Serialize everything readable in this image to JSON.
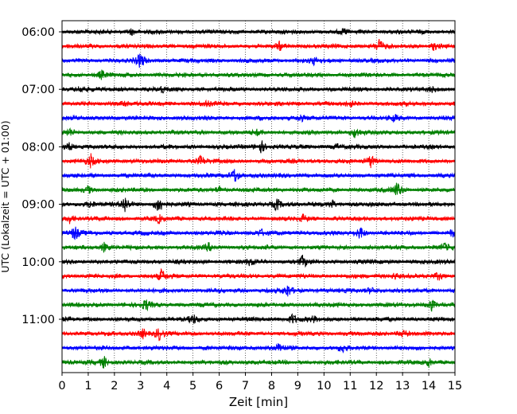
{
  "chart_data": {
    "type": "line",
    "title": "",
    "xlabel": "Zeit  [min]",
    "ylabel": "UTC (Lokalzeit = UTC + 01:00)",
    "xlim": [
      0,
      15
    ],
    "x_ticks": [
      "0",
      "1",
      "2",
      "3",
      "4",
      "5",
      "6",
      "7",
      "8",
      "9",
      "10",
      "11",
      "12",
      "13",
      "14",
      "15"
    ],
    "y_tick_labels": [
      "06:00",
      "07:00",
      "08:00",
      "09:00",
      "10:00",
      "11:00"
    ],
    "grid": "vertical dotted",
    "trace_colors": [
      "#000000",
      "#ff0000",
      "#0000ff",
      "#008000"
    ],
    "rows": [
      {
        "time": "06:00",
        "color": "#000000",
        "events": [
          {
            "x": 2.65,
            "a": 0.4
          },
          {
            "x": 10.8,
            "a": 0.3
          }
        ]
      },
      {
        "time": "06:15",
        "color": "#ff0000",
        "events": [
          {
            "x": 8.3,
            "a": 0.5
          },
          {
            "x": 12.1,
            "a": 1.0
          },
          {
            "x": 14.2,
            "a": 0.5
          }
        ]
      },
      {
        "time": "06:30",
        "color": "#0000ff",
        "events": [
          {
            "x": 3.0,
            "a": 1.1
          },
          {
            "x": 9.6,
            "a": 0.5
          }
        ]
      },
      {
        "time": "06:45",
        "color": "#008000",
        "events": [
          {
            "x": 1.5,
            "a": 0.5
          }
        ]
      },
      {
        "time": "07:00",
        "color": "#000000",
        "events": [
          {
            "x": 0.7,
            "a": 0.5
          },
          {
            "x": 3.8,
            "a": 0.4
          },
          {
            "x": 14.1,
            "a": 0.4
          }
        ]
      },
      {
        "time": "07:15",
        "color": "#ff0000",
        "events": [
          {
            "x": 2.4,
            "a": 0.5
          },
          {
            "x": 5.5,
            "a": 0.4
          },
          {
            "x": 11.0,
            "a": 0.4
          }
        ]
      },
      {
        "time": "07:30",
        "color": "#0000ff",
        "events": [
          {
            "x": 9.1,
            "a": 0.6
          },
          {
            "x": 12.7,
            "a": 0.4
          }
        ]
      },
      {
        "time": "07:45",
        "color": "#008000",
        "events": [
          {
            "x": 0.3,
            "a": 0.5
          },
          {
            "x": 11.2,
            "a": 0.8
          },
          {
            "x": 7.5,
            "a": 0.4
          }
        ]
      },
      {
        "time": "08:00",
        "color": "#000000",
        "events": [
          {
            "x": 0.3,
            "a": 0.6
          },
          {
            "x": 7.6,
            "a": 1.0
          },
          {
            "x": 10.5,
            "a": 0.4
          }
        ]
      },
      {
        "time": "08:15",
        "color": "#ff0000",
        "events": [
          {
            "x": 1.1,
            "a": 0.9
          },
          {
            "x": 5.3,
            "a": 0.8
          },
          {
            "x": 11.8,
            "a": 0.9
          }
        ]
      },
      {
        "time": "08:30",
        "color": "#0000ff",
        "events": [
          {
            "x": 6.6,
            "a": 1.1
          }
        ]
      },
      {
        "time": "08:45",
        "color": "#008000",
        "events": [
          {
            "x": 1.0,
            "a": 0.5
          },
          {
            "x": 12.8,
            "a": 1.2
          },
          {
            "x": 6.0,
            "a": 0.5
          }
        ]
      },
      {
        "time": "09:00",
        "color": "#000000",
        "events": [
          {
            "x": 1.1,
            "a": 0.6
          },
          {
            "x": 2.4,
            "a": 1.2
          },
          {
            "x": 3.7,
            "a": 1.3
          },
          {
            "x": 8.2,
            "a": 1.0
          },
          {
            "x": 10.3,
            "a": 0.7
          }
        ]
      },
      {
        "time": "09:15",
        "color": "#ff0000",
        "events": [
          {
            "x": 0.3,
            "a": 0.6
          },
          {
            "x": 3.7,
            "a": 0.5
          },
          {
            "x": 9.2,
            "a": 0.5
          }
        ]
      },
      {
        "time": "09:30",
        "color": "#0000ff",
        "events": [
          {
            "x": 0.5,
            "a": 1.1
          },
          {
            "x": 7.6,
            "a": 0.5
          },
          {
            "x": 11.4,
            "a": 0.9
          },
          {
            "x": 14.9,
            "a": 0.5
          }
        ]
      },
      {
        "time": "09:45",
        "color": "#008000",
        "events": [
          {
            "x": 1.6,
            "a": 0.6
          },
          {
            "x": 5.6,
            "a": 0.5
          },
          {
            "x": 14.6,
            "a": 0.5
          }
        ]
      },
      {
        "time": "10:00",
        "color": "#000000",
        "events": [
          {
            "x": 7.2,
            "a": 0.5
          },
          {
            "x": 9.2,
            "a": 0.9
          }
        ]
      },
      {
        "time": "10:15",
        "color": "#ff0000",
        "events": [
          {
            "x": 3.8,
            "a": 0.9
          },
          {
            "x": 12.7,
            "a": 0.5
          },
          {
            "x": 14.4,
            "a": 0.5
          }
        ]
      },
      {
        "time": "10:30",
        "color": "#0000ff",
        "events": [
          {
            "x": 8.6,
            "a": 0.9
          },
          {
            "x": 11.8,
            "a": 0.5
          }
        ]
      },
      {
        "time": "10:45",
        "color": "#008000",
        "events": [
          {
            "x": 3.2,
            "a": 0.8
          },
          {
            "x": 14.1,
            "a": 0.9
          }
        ]
      },
      {
        "time": "11:00",
        "color": "#000000",
        "events": [
          {
            "x": 5.0,
            "a": 0.6
          },
          {
            "x": 8.8,
            "a": 0.8
          },
          {
            "x": 9.6,
            "a": 0.4
          }
        ]
      },
      {
        "time": "11:15",
        "color": "#ff0000",
        "events": [
          {
            "x": 3.1,
            "a": 0.7
          },
          {
            "x": 3.7,
            "a": 0.9
          },
          {
            "x": 13.0,
            "a": 0.6
          }
        ]
      },
      {
        "time": "11:30",
        "color": "#0000ff",
        "events": [
          {
            "x": 8.3,
            "a": 0.7
          },
          {
            "x": 10.7,
            "a": 0.5
          }
        ]
      },
      {
        "time": "11:45",
        "color": "#008000",
        "events": [
          {
            "x": 1.6,
            "a": 0.8
          },
          {
            "x": 14.0,
            "a": 0.6
          }
        ]
      }
    ]
  }
}
